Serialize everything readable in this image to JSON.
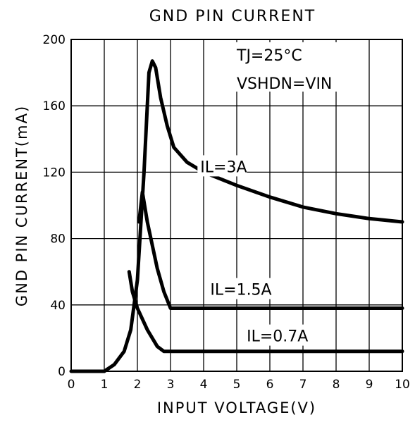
{
  "chart_data": {
    "type": "line",
    "title": "GND PIN CURRENT",
    "xlabel": "INPUT VOLTAGE(V)",
    "ylabel": "GND PIN CURRENT(mA)",
    "xlim": [
      0,
      10
    ],
    "ylim": [
      0,
      200
    ],
    "x_ticks": [
      "0",
      "1",
      "2",
      "3",
      "4",
      "5",
      "6",
      "7",
      "8",
      "9",
      "10"
    ],
    "y_ticks": [
      "0",
      "40",
      "80",
      "120",
      "160",
      "200"
    ],
    "grid": true,
    "annotations": {
      "temperature": "TJ=25°C",
      "shutdown": "VSHDN=VIN"
    },
    "series": [
      {
        "name": "IL=3A",
        "points": [
          [
            0,
            0
          ],
          [
            1,
            0
          ],
          [
            1.3,
            4
          ],
          [
            1.6,
            12
          ],
          [
            1.8,
            25
          ],
          [
            2.0,
            55
          ],
          [
            2.2,
            120
          ],
          [
            2.35,
            180
          ],
          [
            2.45,
            187
          ],
          [
            2.55,
            183
          ],
          [
            2.7,
            165
          ],
          [
            2.9,
            148
          ],
          [
            3.1,
            135
          ],
          [
            3.5,
            126
          ],
          [
            4,
            120
          ],
          [
            5,
            112
          ],
          [
            6,
            105
          ],
          [
            7,
            99
          ],
          [
            8,
            95
          ],
          [
            9,
            92
          ],
          [
            10,
            90
          ]
        ]
      },
      {
        "name": "IL=1.5A",
        "points": [
          [
            2.05,
            90
          ],
          [
            2.15,
            108
          ],
          [
            2.3,
            90
          ],
          [
            2.6,
            62
          ],
          [
            2.8,
            48
          ],
          [
            3.0,
            38
          ],
          [
            10,
            38
          ]
        ]
      },
      {
        "name": "IL=0.7A",
        "points": [
          [
            1.75,
            60
          ],
          [
            1.85,
            48
          ],
          [
            2.0,
            38
          ],
          [
            2.3,
            25
          ],
          [
            2.6,
            15
          ],
          [
            2.8,
            12
          ],
          [
            10,
            12
          ]
        ]
      }
    ]
  }
}
